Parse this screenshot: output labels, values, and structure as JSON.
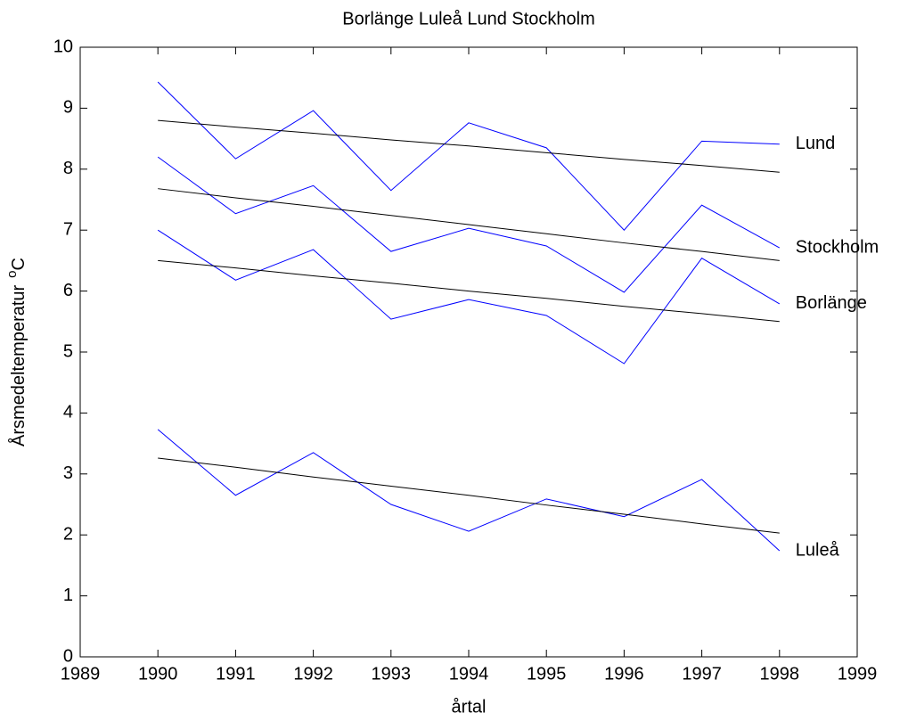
{
  "chart_data": {
    "type": "line",
    "title": "Borlänge  Luleå  Lund  Stockholm",
    "xlabel": "årtal",
    "ylabel": {
      "text": "Årsmedeltemperatur",
      "sup": "o",
      "unit": "C"
    },
    "x": [
      1990,
      1991,
      1992,
      1993,
      1994,
      1995,
      1996,
      1997,
      1998
    ],
    "xlim": [
      1989,
      1999
    ],
    "xticks": [
      1989,
      1990,
      1991,
      1992,
      1993,
      1994,
      1995,
      1996,
      1997,
      1998,
      1999
    ],
    "ylim": [
      0,
      10
    ],
    "yticks": [
      0,
      1,
      2,
      3,
      4,
      5,
      6,
      7,
      8,
      9,
      10
    ],
    "grid": false,
    "series": [
      {
        "name": "Lund",
        "color": "#0000ff",
        "values": [
          9.43,
          8.17,
          8.96,
          7.65,
          8.76,
          8.35,
          7.0,
          8.46,
          8.41
        ]
      },
      {
        "name": "Stockholm",
        "color": "#0000ff",
        "values": [
          8.2,
          7.27,
          7.73,
          6.65,
          7.03,
          6.74,
          5.98,
          7.41,
          6.71
        ]
      },
      {
        "name": "Borlänge",
        "color": "#0000ff",
        "values": [
          7.0,
          6.18,
          6.68,
          5.54,
          5.86,
          5.6,
          4.81,
          6.54,
          5.79
        ]
      },
      {
        "name": "Luleå",
        "color": "#0000ff",
        "values": [
          3.73,
          2.65,
          3.35,
          2.5,
          2.06,
          2.59,
          2.3,
          2.91,
          1.74
        ]
      },
      {
        "color": "#000000",
        "values": [
          8.8,
          8.69,
          8.59,
          8.48,
          8.38,
          8.27,
          8.16,
          8.06,
          7.95
        ]
      },
      {
        "color": "#000000",
        "values": [
          7.68,
          7.53,
          7.39,
          7.24,
          7.09,
          6.94,
          6.79,
          6.65,
          6.5
        ]
      },
      {
        "color": "#000000",
        "values": [
          6.5,
          6.38,
          6.25,
          6.13,
          6.0,
          5.88,
          5.75,
          5.63,
          5.5
        ]
      },
      {
        "color": "#000000",
        "values": [
          3.26,
          3.11,
          2.95,
          2.8,
          2.65,
          2.49,
          2.34,
          2.18,
          2.03
        ]
      }
    ]
  }
}
